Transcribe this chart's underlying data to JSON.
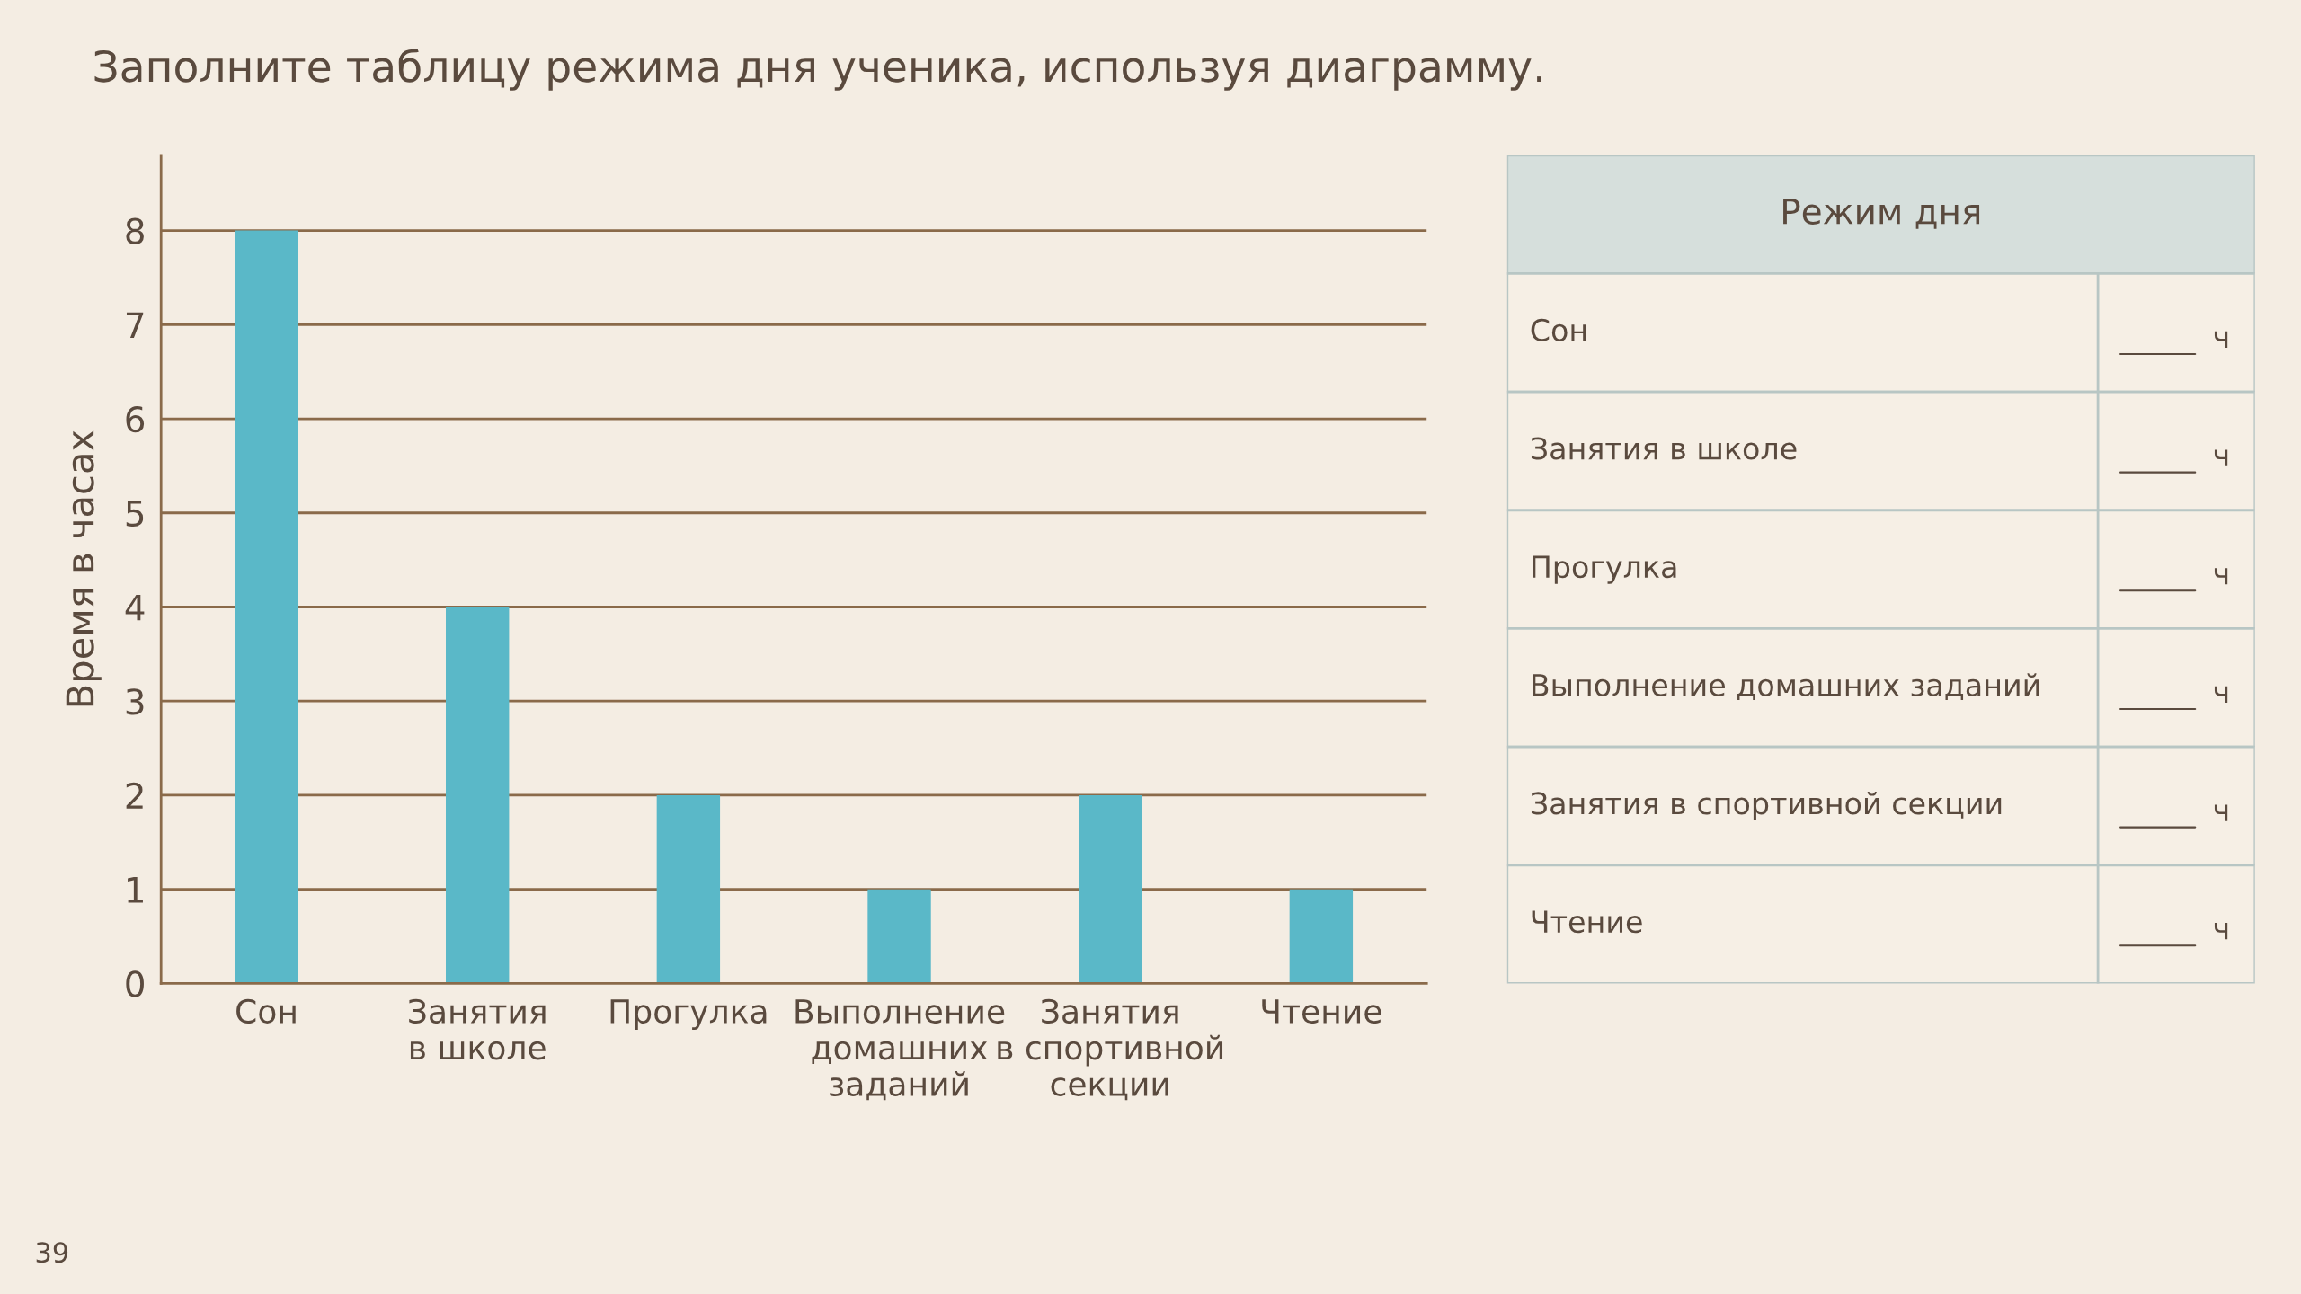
{
  "chart_data": [
    {
      "type": "bar",
      "title": "Заполните таблицу режима дня ученика, используя диаграмму.",
      "ylabel": "Время в часах",
      "categories": [
        "Сон",
        "Занятия\nв школе",
        "Прогулка",
        "Выполнение\nдомашних\nзаданий",
        "Занятия\nв спортивной\nсекции",
        "Чтение"
      ],
      "values": [
        8,
        4,
        2,
        1,
        2,
        1
      ],
      "color": "#5ab8c8",
      "ylim": [
        0,
        8.8
      ],
      "yticks": [
        0,
        1,
        2,
        3,
        4,
        5,
        6,
        7,
        8
      ],
      "grid": "y",
      "annotations": [
        "39"
      ]
    },
    {
      "type": "other",
      "title": "Режим дня",
      "y_categories": [
        "Сон",
        "Занятия в школе",
        "Прогулка",
        "Выполнение домашних заданий",
        "Занятия в спортивной секции",
        "Чтение"
      ],
      "cell_labels": [
        [
          "ч"
        ],
        [
          "ч"
        ],
        [
          "ч"
        ],
        [
          "ч"
        ],
        [
          "ч"
        ],
        [
          "ч"
        ]
      ]
    }
  ]
}
